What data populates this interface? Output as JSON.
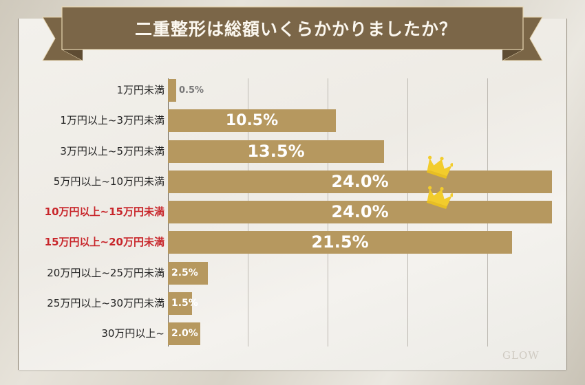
{
  "title": "二重整形は総額いくらかかりましたか？",
  "logo": "GLOW",
  "colors": {
    "bar": "#b6985f",
    "ribbon": "#7b6648",
    "highlight_label": "#c8262b",
    "crown": "#f2cc2c"
  },
  "rows": [
    {
      "label": "1万円未満",
      "value": 0.5,
      "display": "0.5%",
      "highlight": false
    },
    {
      "label": "1万円以上~3万円未満",
      "value": 10.5,
      "display": "10.5%",
      "highlight": false
    },
    {
      "label": "3万円以上~5万円未満",
      "value": 13.5,
      "display": "13.5%",
      "highlight": false
    },
    {
      "label": "5万円以上~10万円未満",
      "value": 24.0,
      "display": "24.0%",
      "highlight": false,
      "crown": true
    },
    {
      "label": "10万円以上~15万円未満",
      "value": 24.0,
      "display": "24.0%",
      "highlight": true,
      "crown": true
    },
    {
      "label": "15万円以上~20万円未満",
      "value": 21.5,
      "display": "21.5%",
      "highlight": true
    },
    {
      "label": "20万円以上~25万円未満",
      "value": 2.5,
      "display": "2.5%",
      "highlight": false
    },
    {
      "label": "25万円以上~30万円未満",
      "value": 1.5,
      "display": "1.5%",
      "highlight": false
    },
    {
      "label": "30万円以上~",
      "value": 2.0,
      "display": "2.0%",
      "highlight": false
    }
  ],
  "chart_data": {
    "type": "bar",
    "orientation": "horizontal",
    "title": "二重整形は総額いくらかかりましたか？",
    "categories": [
      "1万円未満",
      "1万円以上~3万円未満",
      "3万円以上~5万円未満",
      "5万円以上~10万円未満",
      "10万円以上~15万円未満",
      "15万円以上~20万円未満",
      "20万円以上~25万円未満",
      "25万円以上~30万円未満",
      "30万円以上~"
    ],
    "values": [
      0.5,
      10.5,
      13.5,
      24.0,
      24.0,
      21.5,
      2.5,
      1.5,
      2.0
    ],
    "unit": "%",
    "xlabel": "",
    "ylabel": "",
    "xlim": [
      0,
      24
    ],
    "grid": true,
    "gridlines_at": [
      5,
      10,
      15,
      20
    ],
    "legend": null,
    "annotations": [
      "crown icons on 5万円以上~10万円未満 and 10万円以上~15万円未満 (tied top)",
      "labels 10万円以上~15万円未満 and 15万円以上~20万円未満 highlighted in red"
    ]
  }
}
